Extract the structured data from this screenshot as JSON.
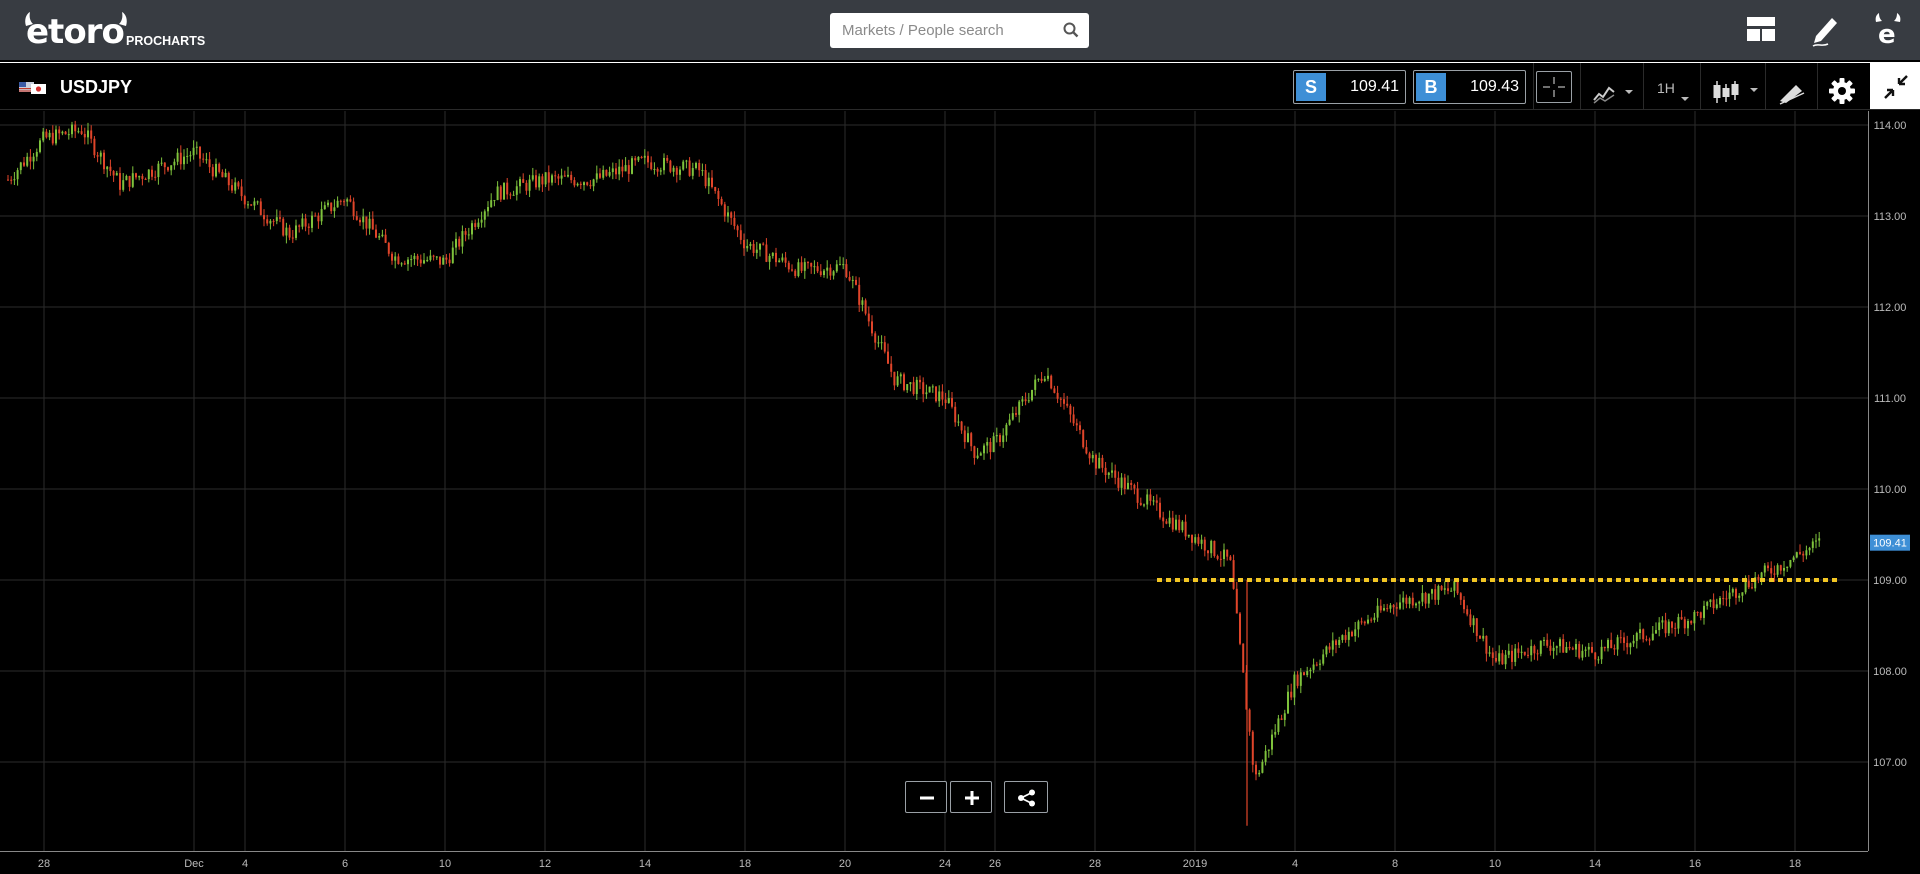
{
  "header": {
    "logo_text": "etoro",
    "logo_sub": "PROCHARTS",
    "search_placeholder": "Markets / People search",
    "icons": [
      "layout-icon",
      "pencil-icon",
      "etoro-e-icon"
    ]
  },
  "instrument": {
    "symbol": "USDJPY",
    "sell_tag": "S",
    "sell_price": "109.41",
    "buy_tag": "B",
    "buy_price": "109.43",
    "timeframe": "1H",
    "toolbar_icons": [
      "crosshair-icon",
      "indicators-icon",
      "timeframe-dropdown",
      "candlestick-icon",
      "drawing-tools-icon",
      "settings-icon",
      "collapse-icon"
    ]
  },
  "colors": {
    "background": "#000000",
    "header": "#383c42",
    "accent_blue": "#3e8fd6",
    "candle_up": "#7ec23c",
    "candle_down": "#e0452a",
    "support_line": "#f3c623",
    "grid": "#2b2b2b"
  },
  "chart_data": {
    "type": "candlestick",
    "symbol": "USDJPY",
    "timeframe": "1H",
    "ylim": [
      106.2,
      114.15
    ],
    "y_ticks": [
      "114.00",
      "113.00",
      "112.00",
      "111.00",
      "110.00",
      "109.00",
      "108.00",
      "107.00"
    ],
    "x_ticks": [
      "28",
      "Dec",
      "4",
      "6",
      "10",
      "12",
      "14",
      "18",
      "20",
      "24",
      "26",
      "28",
      "2019",
      "4",
      "8",
      "10",
      "14",
      "16",
      "18"
    ],
    "current_price_label": "109.41",
    "current_price": 109.41,
    "horizontal_line": {
      "price": 109.0,
      "style": "dotted",
      "from": "Dec 29"
    },
    "approx_path": [
      [
        "Nov 27",
        113.4
      ],
      [
        "Nov 28",
        113.85
      ],
      [
        "Nov 29",
        113.95
      ],
      [
        "Nov 30",
        113.35
      ],
      [
        "Dec 3",
        113.7
      ],
      [
        "Dec 4",
        113.2
      ],
      [
        "Dec 5",
        112.8
      ],
      [
        "Dec 6",
        113.2
      ],
      [
        "Dec 7",
        112.55
      ],
      [
        "Dec 10",
        112.5
      ],
      [
        "Dec 11",
        113.25
      ],
      [
        "Dec 12",
        113.4
      ],
      [
        "Dec 13",
        113.4
      ],
      [
        "Dec 14",
        113.6
      ],
      [
        "Dec 17",
        113.5
      ],
      [
        "Dec 18",
        112.7
      ],
      [
        "Dec 19",
        112.4
      ],
      [
        "Dec 20",
        112.45
      ],
      [
        "Dec 21",
        111.2
      ],
      [
        "Dec 24",
        111.0
      ],
      [
        "Dec 25",
        110.4
      ],
      [
        "Dec 26",
        110.5
      ],
      [
        "Dec 27",
        111.3
      ],
      [
        "Dec 28",
        110.3
      ],
      [
        "Dec 31",
        109.7
      ],
      [
        "Jan 2",
        109.2
      ],
      [
        "Jan 3",
        106.8
      ],
      [
        "Jan 4",
        107.9
      ],
      [
        "Jan 7",
        108.4
      ],
      [
        "Jan 8",
        108.75
      ],
      [
        "Jan 9",
        108.9
      ],
      [
        "Jan 10",
        108.1
      ],
      [
        "Jan 11",
        108.3
      ],
      [
        "Jan 14",
        108.2
      ],
      [
        "Jan 15",
        108.4
      ],
      [
        "Jan 16",
        108.6
      ],
      [
        "Jan 17",
        108.95
      ],
      [
        "Jan 18",
        109.41
      ]
    ]
  }
}
